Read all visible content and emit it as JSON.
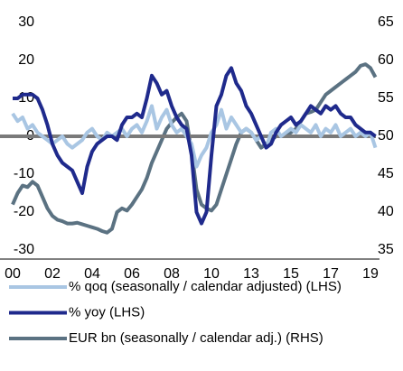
{
  "chart_data": {
    "type": "line",
    "categories": [
      "00",
      null,
      null,
      null,
      null,
      null,
      null,
      null,
      "02",
      null,
      null,
      null,
      null,
      null,
      null,
      null,
      "04",
      null,
      null,
      null,
      null,
      null,
      null,
      null,
      "06",
      null,
      null,
      null,
      null,
      null,
      null,
      null,
      "08",
      null,
      null,
      null,
      null,
      null,
      null,
      null,
      "10",
      null,
      null,
      null,
      null,
      null,
      null,
      null,
      "13",
      null,
      null,
      null,
      null,
      null,
      null,
      null,
      "15",
      null,
      null,
      null,
      null,
      null,
      null,
      null,
      "17",
      null,
      null,
      null,
      null,
      null,
      null,
      null,
      "19",
      null
    ],
    "series": [
      {
        "name": "% qoq (seasonally / calendar adjusted) (LHS)",
        "color": "#a9c6e3",
        "values": [
          6,
          4,
          5,
          2,
          3,
          1,
          0,
          -1,
          -2,
          -1,
          0,
          -2,
          -3,
          -2,
          -1,
          1,
          2,
          0,
          -1,
          1,
          0,
          1,
          2,
          0,
          2,
          3,
          1,
          4,
          8,
          2,
          5,
          7,
          3,
          1,
          2,
          0,
          -2,
          -8,
          -5,
          -3,
          1,
          3,
          7,
          2,
          5,
          3,
          1,
          2,
          1,
          -1,
          0,
          -3,
          1,
          2,
          0,
          1,
          2,
          1,
          3,
          2,
          1,
          3,
          0,
          2,
          1,
          3,
          0,
          1,
          2,
          0,
          1,
          0,
          1,
          -3
        ]
      },
      {
        "name": "% yoy (LHS)",
        "color": "#1f2a8c",
        "values": [
          10,
          10,
          11,
          11,
          11,
          10,
          7,
          3,
          -2,
          -5,
          -7,
          -8,
          -9,
          -12,
          -15,
          -8,
          -4,
          -2,
          -1,
          0,
          0,
          -1,
          3,
          5,
          5,
          6,
          5,
          10,
          16,
          14,
          11,
          12,
          8,
          5,
          3,
          2,
          -5,
          -20,
          -23,
          -20,
          -5,
          8,
          11,
          16,
          18,
          14,
          12,
          8,
          6,
          3,
          0,
          -3,
          -2,
          1,
          3,
          4,
          5,
          3,
          4,
          6,
          8,
          7,
          6,
          8,
          7,
          8,
          6,
          5,
          5,
          3,
          2,
          1,
          1,
          0
        ]
      },
      {
        "name": "EUR bn (seasonally / calendar adj.) (RHS)",
        "color": "#5b7282",
        "axis": "y2",
        "values": [
          41,
          42.5,
          43.5,
          43.3,
          44,
          43.5,
          42,
          40.5,
          39.5,
          39,
          38.8,
          38.5,
          38.5,
          38.6,
          38.4,
          38.2,
          38,
          37.8,
          37.5,
          37.3,
          37.8,
          40,
          40.5,
          40.2,
          41,
          42,
          43,
          44.5,
          46.5,
          48,
          49.5,
          51,
          51.8,
          52.5,
          53,
          52,
          48,
          43,
          41,
          40.5,
          40.2,
          41,
          43,
          45,
          47,
          49,
          50.5,
          51,
          50.5,
          49.5,
          48.5,
          49,
          49.5,
          50,
          50,
          50.3,
          50.5,
          51,
          52,
          53,
          53.2,
          53.5,
          54.5,
          55.5,
          56,
          56.5,
          57,
          57.5,
          58,
          58.5,
          59.3,
          59.5,
          59,
          57.8
        ]
      }
    ],
    "ylim": [
      -30,
      30
    ],
    "yticks": [
      -30,
      -20,
      -10,
      0,
      10,
      20,
      30
    ],
    "y2lim": [
      35,
      65
    ],
    "y2ticks": [
      35,
      40,
      45,
      50,
      55,
      60,
      65
    ],
    "zero_line": true
  }
}
